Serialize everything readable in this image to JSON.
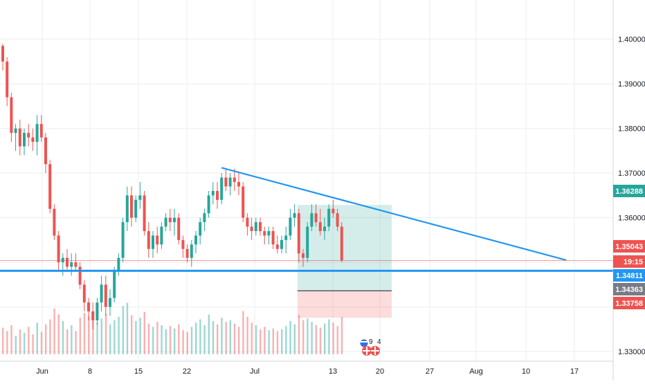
{
  "chart_data": {
    "type": "candlestick",
    "x_tick_labels": [
      "Jun",
      "8",
      "15",
      "22",
      "Jul",
      "13",
      "20",
      "27",
      "Aug",
      "10",
      "17"
    ],
    "y_tick_labels": [
      "1.40000",
      "1.39000",
      "1.38000",
      "1.37000",
      "1.36000",
      "1.33000"
    ],
    "ylim": [
      1.3235,
      1.4088
    ],
    "price_labels": [
      {
        "name": "position-target",
        "value": "1.36288",
        "color": "#26a69a"
      },
      {
        "name": "last-price",
        "value": "1.35043",
        "color": "#ef5350"
      },
      {
        "name": "countdown",
        "value": "19:15",
        "color": "#ef5350"
      },
      {
        "name": "horizontal-support",
        "value": "1.34811",
        "color": "#2196f3"
      },
      {
        "name": "position-entry",
        "value": "1.34363",
        "color": "#787b86"
      },
      {
        "name": "position-stop",
        "value": "1.33758",
        "color": "#ef5350"
      }
    ],
    "candles": [
      [
        1.3985,
        1.399,
        1.393,
        1.395
      ],
      [
        1.395,
        1.396,
        1.385,
        1.387
      ],
      [
        1.387,
        1.388,
        1.377,
        1.379
      ],
      [
        1.379,
        1.381,
        1.375,
        1.38
      ],
      [
        1.38,
        1.382,
        1.374,
        1.376
      ],
      [
        1.376,
        1.38,
        1.374,
        1.379
      ],
      [
        1.379,
        1.381,
        1.376,
        1.378
      ],
      [
        1.378,
        1.38,
        1.375,
        1.377
      ],
      [
        1.377,
        1.383,
        1.374,
        1.381
      ],
      [
        1.381,
        1.383,
        1.377,
        1.378
      ],
      [
        1.378,
        1.379,
        1.37,
        1.372
      ],
      [
        1.372,
        1.373,
        1.361,
        1.362
      ],
      [
        1.362,
        1.363,
        1.355,
        1.356
      ],
      [
        1.356,
        1.357,
        1.348,
        1.35
      ],
      [
        1.35,
        1.352,
        1.347,
        1.351
      ],
      [
        1.351,
        1.353,
        1.348,
        1.349
      ],
      [
        1.349,
        1.352,
        1.347,
        1.35
      ],
      [
        1.35,
        1.352,
        1.348,
        1.349
      ],
      [
        1.349,
        1.35,
        1.344,
        1.345
      ],
      [
        1.345,
        1.346,
        1.339,
        1.341
      ],
      [
        1.341,
        1.342,
        1.337,
        1.339
      ],
      [
        1.339,
        1.341,
        1.335,
        1.337
      ],
      [
        1.337,
        1.342,
        1.336,
        1.341
      ],
      [
        1.341,
        1.347,
        1.339,
        1.345
      ],
      [
        1.345,
        1.347,
        1.338,
        1.34
      ],
      [
        1.34,
        1.344,
        1.338,
        1.342
      ],
      [
        1.342,
        1.349,
        1.341,
        1.348
      ],
      [
        1.348,
        1.352,
        1.347,
        1.351
      ],
      [
        1.351,
        1.36,
        1.35,
        1.359
      ],
      [
        1.359,
        1.367,
        1.357,
        1.365
      ],
      [
        1.365,
        1.367,
        1.358,
        1.36
      ],
      [
        1.36,
        1.365,
        1.359,
        1.364
      ],
      [
        1.364,
        1.368,
        1.362,
        1.365
      ],
      [
        1.365,
        1.366,
        1.356,
        1.357
      ],
      [
        1.357,
        1.359,
        1.351,
        1.353
      ],
      [
        1.353,
        1.357,
        1.351,
        1.356
      ],
      [
        1.356,
        1.358,
        1.352,
        1.354
      ],
      [
        1.354,
        1.359,
        1.353,
        1.358
      ],
      [
        1.358,
        1.361,
        1.357,
        1.36
      ],
      [
        1.36,
        1.362,
        1.357,
        1.359
      ],
      [
        1.359,
        1.362,
        1.356,
        1.36
      ],
      [
        1.36,
        1.361,
        1.354,
        1.355
      ],
      [
        1.355,
        1.356,
        1.351,
        1.353
      ],
      [
        1.353,
        1.354,
        1.35,
        1.351
      ],
      [
        1.351,
        1.355,
        1.349,
        1.354
      ],
      [
        1.354,
        1.357,
        1.352,
        1.356
      ],
      [
        1.356,
        1.36,
        1.354,
        1.359
      ],
      [
        1.359,
        1.362,
        1.357,
        1.361
      ],
      [
        1.361,
        1.366,
        1.36,
        1.365
      ],
      [
        1.365,
        1.368,
        1.363,
        1.366
      ],
      [
        1.366,
        1.368,
        1.362,
        1.364
      ],
      [
        1.364,
        1.37,
        1.363,
        1.369
      ],
      [
        1.369,
        1.371,
        1.366,
        1.367
      ],
      [
        1.367,
        1.37,
        1.365,
        1.369
      ],
      [
        1.369,
        1.371,
        1.366,
        1.368
      ],
      [
        1.368,
        1.37,
        1.365,
        1.367
      ],
      [
        1.367,
        1.368,
        1.359,
        1.36
      ],
      [
        1.36,
        1.361,
        1.356,
        1.358
      ],
      [
        1.358,
        1.36,
        1.355,
        1.357
      ],
      [
        1.357,
        1.36,
        1.356,
        1.359
      ],
      [
        1.359,
        1.36,
        1.356,
        1.357
      ],
      [
        1.357,
        1.358,
        1.354,
        1.356
      ],
      [
        1.356,
        1.358,
        1.354,
        1.357
      ],
      [
        1.357,
        1.358,
        1.353,
        1.354
      ],
      [
        1.354,
        1.356,
        1.352,
        1.353
      ],
      [
        1.353,
        1.356,
        1.352,
        1.355
      ],
      [
        1.355,
        1.358,
        1.352,
        1.356
      ],
      [
        1.356,
        1.362,
        1.355,
        1.36
      ],
      [
        1.36,
        1.363,
        1.358,
        1.361
      ],
      [
        1.361,
        1.362,
        1.35,
        1.352
      ],
      [
        1.352,
        1.353,
        1.349,
        1.351
      ],
      [
        1.351,
        1.359,
        1.35,
        1.358
      ],
      [
        1.358,
        1.363,
        1.357,
        1.361
      ],
      [
        1.361,
        1.363,
        1.358,
        1.359
      ],
      [
        1.359,
        1.362,
        1.356,
        1.357
      ],
      [
        1.357,
        1.36,
        1.355,
        1.358
      ],
      [
        1.358,
        1.363,
        1.357,
        1.362
      ],
      [
        1.362,
        1.364,
        1.36,
        1.361
      ],
      [
        1.361,
        1.362,
        1.357,
        1.358
      ],
      [
        1.358,
        1.359,
        1.35,
        1.3504
      ]
    ],
    "volumes": [
      0.32,
      0.28,
      0.35,
      0.22,
      0.3,
      0.26,
      0.33,
      0.24,
      0.38,
      0.27,
      0.36,
      0.42,
      0.55,
      0.48,
      0.4,
      0.3,
      0.35,
      0.28,
      0.44,
      0.5,
      0.46,
      0.52,
      0.38,
      0.43,
      0.49,
      0.36,
      0.41,
      0.45,
      0.58,
      0.62,
      0.47,
      0.4,
      0.44,
      0.51,
      0.37,
      0.33,
      0.39,
      0.35,
      0.3,
      0.34,
      0.31,
      0.36,
      0.29,
      0.27,
      0.33,
      0.38,
      0.42,
      0.35,
      0.48,
      0.4,
      0.36,
      0.44,
      0.39,
      0.41,
      0.37,
      0.33,
      0.52,
      0.45,
      0.38,
      0.35,
      0.3,
      0.33,
      0.29,
      0.31,
      0.28,
      0.3,
      0.34,
      0.4,
      0.36,
      0.47,
      0.41,
      0.43,
      0.39,
      0.35,
      0.32,
      0.37,
      0.42,
      0.38,
      0.34,
      0.45
    ],
    "trendline": {
      "from": {
        "candle": 51,
        "price": 1.3712
      },
      "to": {
        "candle": 128,
        "price": 1.3505
      }
    },
    "support_level": 1.34811,
    "position": {
      "entry": 1.34363,
      "target": 1.36288,
      "stop": 1.33758,
      "start_candle": 69,
      "end_candle": 89
    },
    "events_badge": {
      "count_a": "9",
      "count_b": "4"
    },
    "colors": {
      "up": "#26a69a",
      "down": "#ef5350",
      "trend": "#2196f3",
      "grid": "#ebedf0",
      "axis_text": "#131722"
    }
  }
}
